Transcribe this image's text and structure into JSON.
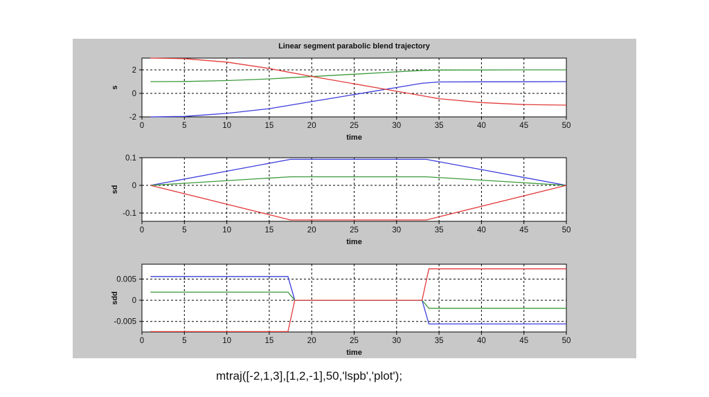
{
  "caption": "mtraj([-2,1,3],[1,2,-1],50,'lspb','plot');",
  "chart_data": [
    {
      "type": "line",
      "title": "Linear segment parabolic blend trajectory",
      "xlabel": "time",
      "ylabel": "s",
      "xlim": [
        0,
        50
      ],
      "ylim": [
        -2,
        3
      ],
      "xticks": [
        "0",
        "5",
        "10",
        "15",
        "20",
        "25",
        "30",
        "35",
        "40",
        "45",
        "50"
      ],
      "yticks": [
        "2",
        "0",
        "-2"
      ],
      "ytick_values": [
        2,
        0,
        -2
      ],
      "grid": true,
      "series": [
        {
          "color": "#3b3bdc",
          "x": [
            1,
            5,
            10,
            15,
            17,
            20,
            25,
            30,
            33,
            35,
            40,
            45,
            50
          ],
          "y": [
            -2,
            -1.96,
            -1.7,
            -1.3,
            -1.06,
            -0.7,
            -0.1,
            0.5,
            0.86,
            0.97,
            0.98,
            0.99,
            1
          ]
        },
        {
          "color": "#3a9a3a",
          "x": [
            1,
            5,
            10,
            15,
            17,
            20,
            25,
            30,
            33,
            35,
            40,
            45,
            50
          ],
          "y": [
            1,
            1.01,
            1.09,
            1.23,
            1.31,
            1.43,
            1.63,
            1.83,
            1.95,
            1.98,
            1.99,
            2,
            2
          ]
        },
        {
          "color": "#e23a3a",
          "x": [
            1,
            5,
            10,
            15,
            17,
            20,
            25,
            30,
            33,
            35,
            40,
            45,
            50
          ],
          "y": [
            3,
            2.95,
            2.66,
            2.12,
            1.84,
            1.44,
            0.81,
            0.18,
            -0.2,
            -0.45,
            -0.78,
            -0.95,
            -1
          ]
        }
      ]
    },
    {
      "type": "line",
      "xlabel": "time",
      "ylabel": "sd",
      "xlim": [
        0,
        50
      ],
      "ylim": [
        -0.13,
        0.1
      ],
      "xticks": [
        "0",
        "5",
        "10",
        "15",
        "20",
        "25",
        "30",
        "35",
        "40",
        "45",
        "50"
      ],
      "yticks": [
        "0.1",
        "0",
        "-0.1"
      ],
      "ytick_values": [
        0.1,
        0,
        -0.1
      ],
      "grid": true,
      "series": [
        {
          "color": "#3b3bdc",
          "x": [
            1,
            17.5,
            33.5,
            50
          ],
          "y": [
            0,
            0.094,
            0.094,
            0
          ]
        },
        {
          "color": "#3a9a3a",
          "x": [
            1,
            17.5,
            33.5,
            50
          ],
          "y": [
            0,
            0.031,
            0.031,
            0
          ]
        },
        {
          "color": "#e23a3a",
          "x": [
            1,
            17.5,
            33.5,
            50
          ],
          "y": [
            0,
            -0.125,
            -0.125,
            0
          ]
        }
      ]
    },
    {
      "type": "line",
      "xlabel": "time",
      "ylabel": "sdd",
      "xlim": [
        0,
        50
      ],
      "ylim": [
        -0.0075,
        0.0085
      ],
      "xticks": [
        "0",
        "5",
        "10",
        "15",
        "20",
        "25",
        "30",
        "35",
        "40",
        "45",
        "50"
      ],
      "yticks": [
        "0.005",
        "0",
        "-0.005"
      ],
      "ytick_values": [
        0.005,
        0,
        -0.005
      ],
      "grid": true,
      "series": [
        {
          "color": "#3b3bdc",
          "x": [
            1,
            17.2,
            18,
            33,
            33.8,
            50
          ],
          "y": [
            0.0056,
            0.0056,
            0,
            0,
            -0.0056,
            -0.0056
          ]
        },
        {
          "color": "#3a9a3a",
          "x": [
            1,
            17.2,
            18,
            33,
            33.8,
            50
          ],
          "y": [
            0.0019,
            0.0019,
            0,
            0,
            -0.0019,
            -0.0019
          ]
        },
        {
          "color": "#e23a3a",
          "x": [
            1,
            17.2,
            18,
            33,
            33.8,
            50
          ],
          "y": [
            -0.0074,
            -0.0074,
            0,
            0,
            0.0074,
            0.0074
          ]
        }
      ]
    }
  ]
}
